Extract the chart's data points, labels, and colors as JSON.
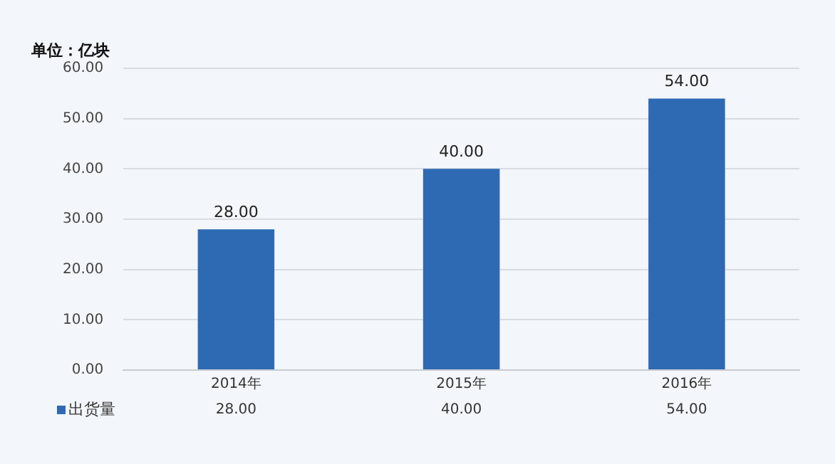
{
  "chart_data": {
    "type": "bar",
    "ylabel": "单位：亿块",
    "categories": [
      "2014年",
      "2015年",
      "2016年"
    ],
    "series": [
      {
        "name": "出货量",
        "color": "#2e6ab3",
        "values": [
          28,
          40,
          54
        ],
        "value_labels": [
          "28.00",
          "40.00",
          "54.00"
        ]
      }
    ],
    "ylim": [
      0,
      60
    ],
    "yticks": [
      {
        "value": 0,
        "label": "0.00"
      },
      {
        "value": 10,
        "label": "10.00"
      },
      {
        "value": 20,
        "label": "20.00"
      },
      {
        "value": 30,
        "label": "30.00"
      },
      {
        "value": 40,
        "label": "40.00"
      },
      {
        "value": 50,
        "label": "50.00"
      },
      {
        "value": 60,
        "label": "60.00"
      }
    ],
    "grid": "y",
    "legend": "bottom"
  }
}
